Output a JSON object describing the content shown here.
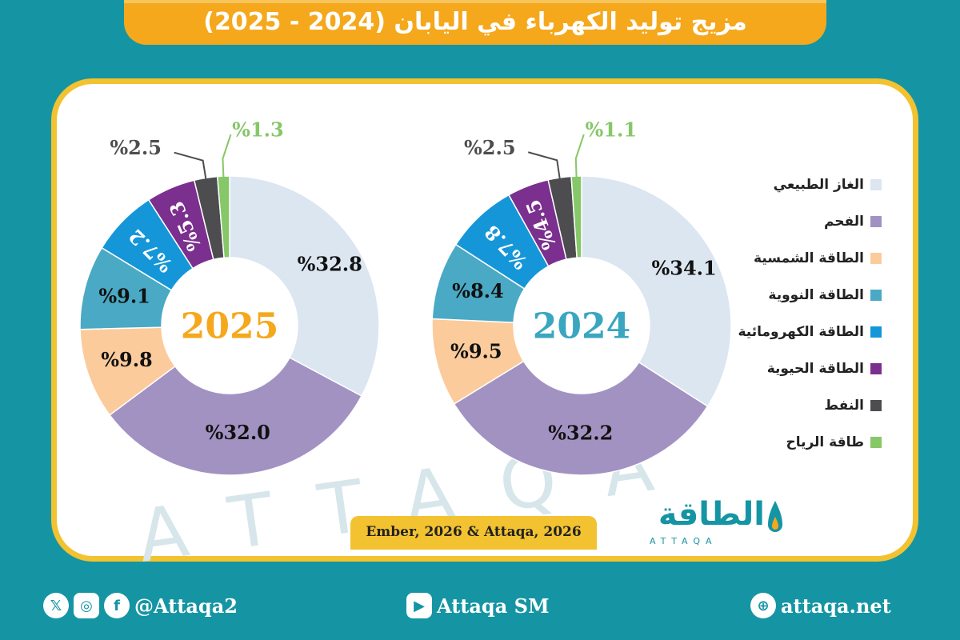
{
  "title": "مزيج توليد الكهرباء في اليابان (2024 - 2025)",
  "legend": [
    {
      "label": "الغاز الطبيعي",
      "color": "#dbe6f1"
    },
    {
      "label": "الفحم",
      "color": "#a292c2"
    },
    {
      "label": "الطاقة الشمسية",
      "color": "#fccb9c"
    },
    {
      "label": "الطاقة النووية",
      "color": "#4aa9c4"
    },
    {
      "label": "الطاقة الكهرومائية",
      "color": "#1596d8"
    },
    {
      "label": "الطاقة الحيوية",
      "color": "#7b2f8e"
    },
    {
      "label": "النفط",
      "color": "#4d4d4f"
    },
    {
      "label": "طاقة الرياح",
      "color": "#86c768"
    }
  ],
  "chart_data": [
    {
      "type": "pie",
      "center_label": "2024",
      "center_color": "#3aa6c0",
      "categories": [
        "الغاز الطبيعي",
        "الفحم",
        "الطاقة الشمسية",
        "الطاقة النووية",
        "الطاقة الكهرومائية",
        "الطاقة الحيوية",
        "النفط",
        "طاقة الرياح"
      ],
      "values": [
        34.1,
        32.2,
        9.5,
        8.4,
        7.8,
        4.5,
        2.5,
        1.1
      ],
      "labels": [
        "%34.1",
        "%32.2",
        "%9.5",
        "%8.4",
        "%7.8",
        "%4.5",
        "%2.5",
        "%1.1"
      ]
    },
    {
      "type": "pie",
      "center_label": "2025",
      "center_color": "#f5a81c",
      "categories": [
        "الغاز الطبيعي",
        "الفحم",
        "الطاقة الشمسية",
        "الطاقة النووية",
        "الطاقة الكهرومائية",
        "الطاقة الحيوية",
        "النفط",
        "طاقة الرياح"
      ],
      "values": [
        32.8,
        32.0,
        9.8,
        9.1,
        7.2,
        5.3,
        2.5,
        1.3
      ],
      "labels": [
        "%32.8",
        "%32.0",
        "%9.8",
        "%9.1",
        "%7.2",
        "%5.3",
        "%2.5",
        "%1.3"
      ]
    }
  ],
  "source": "Ember, 2026 & Attaqa, 2026",
  "logo": {
    "arabic": "الطاقة",
    "latin": "ATTAQA"
  },
  "footer": {
    "social_handle": "@Attaqa2",
    "youtube": "Attaqa SM",
    "website": "attaqa.net",
    "icons": [
      "x-icon",
      "instagram-icon",
      "facebook-icon",
      "youtube-icon",
      "globe-icon"
    ]
  }
}
